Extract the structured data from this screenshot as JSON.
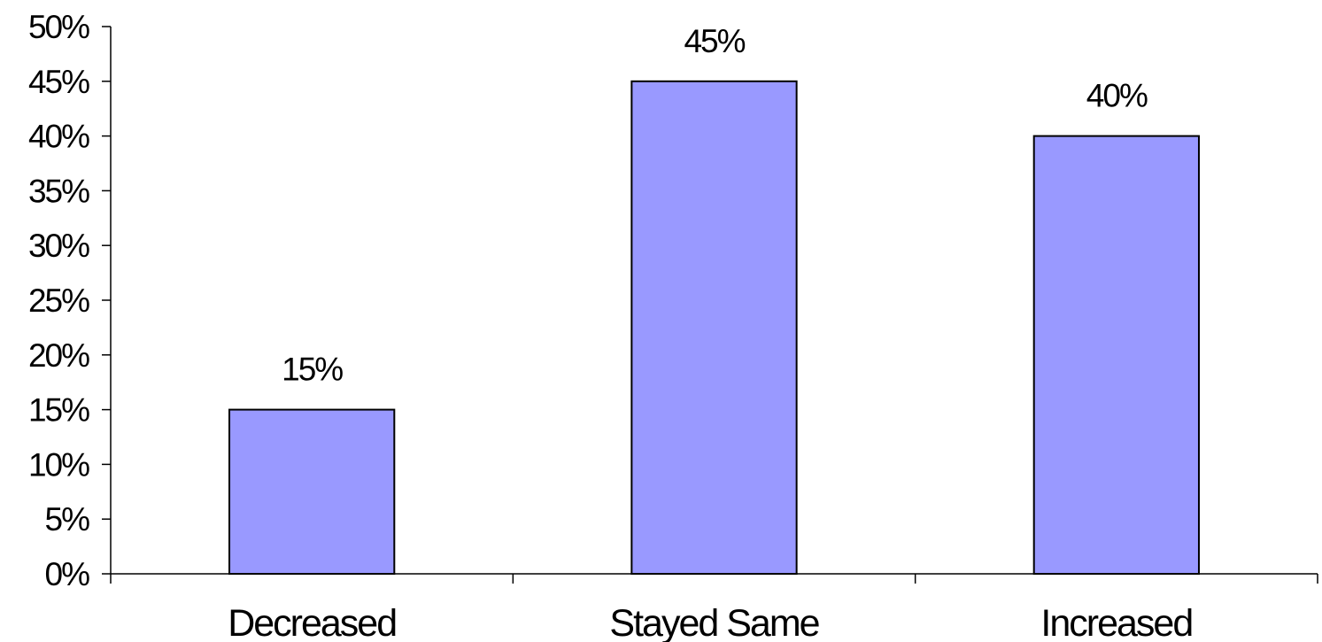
{
  "chart_data": {
    "type": "bar",
    "categories": [
      "Decreased",
      "Stayed Same",
      "Increased"
    ],
    "values": [
      15,
      45,
      40
    ],
    "data_labels": [
      "15%",
      "45%",
      "40%"
    ],
    "yticks": [
      "0%",
      "5%",
      "10%",
      "15%",
      "20%",
      "25%",
      "30%",
      "35%",
      "40%",
      "45%",
      "50%"
    ],
    "ylim": [
      0,
      50
    ],
    "unit": "%",
    "grid": false,
    "legend": "none",
    "title": "",
    "xlabel": "",
    "ylabel": ""
  },
  "colors": {
    "bar_fill": "#9999ff",
    "bar_stroke": "#000000",
    "axis": "#000000"
  }
}
